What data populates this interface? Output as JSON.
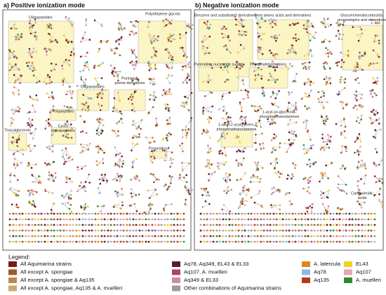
{
  "panels": [
    {
      "title": "a) Positive ionization mode",
      "groups": [
        {
          "lines": [
            "Oligopeptides"
          ]
        },
        {
          "lines": [
            "Polyethylene glycols"
          ]
        },
        {
          "lines": [
            "Oligopeptides"
          ]
        },
        {
          "lines": [
            "Purines &",
            "purine derivatives"
          ]
        },
        {
          "lines": [
            "Polypeptides"
          ]
        },
        {
          "lines": [
            "Cyclic",
            "depsipeptides"
          ]
        },
        {
          "lines": [
            "Triacylglycerols"
          ]
        },
        {
          "lines": [
            "Progestins"
          ]
        }
      ]
    },
    {
      "title": "b) Negative ionization mode",
      "groups": [
        {
          "lines": [
            "Benzene and substituted derivatives"
          ]
        },
        {
          "lines": [
            "Beta amino acids and derivatives"
          ]
        },
        {
          "lines": [
            "Gluco/mineralocorticoids,",
            "progestogins and derivatives"
          ]
        },
        {
          "lines": [
            "Pyrimidine nucleotide sugars"
          ]
        },
        {
          "lines": [
            "Phosphatidylcholines"
          ]
        },
        {
          "lines": [
            "1-acyl-sn-glycero-3-",
            "phosphoethanolamines"
          ]
        },
        {
          "lines": [
            "1-alkyl-2-acylglycero-",
            "phosphoethanolamines"
          ]
        },
        {
          "lines": [
            "Carboximidic",
            "acids"
          ]
        }
      ]
    }
  ],
  "legend": {
    "title": "Legend:",
    "items": [
      {
        "label": "All Aquimarina strains",
        "color": "#7a1a16"
      },
      {
        "label": "All except A. spongiae",
        "color": "#9c5a2a"
      },
      {
        "label": "All except A. spongiae & Aq135",
        "color": "#b8894c"
      },
      {
        "label": "All except A. spongiae, Aq135  & A. muelleri",
        "color": "#c9aa72"
      },
      {
        "label": "Aq78, Aq349, EL43 & EL33",
        "color": "#5a1c2c"
      },
      {
        "label": "Aq107, A. muelleri",
        "color": "#a8466a"
      },
      {
        "label": "Aq349 & EL33",
        "color": "#cf8aa0"
      },
      {
        "label": "Other combinations of Aquimarina strains",
        "color": "#9a9a9a"
      },
      {
        "label": "A. latercula",
        "color": "#e0861c"
      },
      {
        "label": "Aq78",
        "color": "#8cb8e2"
      },
      {
        "label": "Aq135",
        "color": "#b03a1c"
      },
      {
        "label": "EL43",
        "color": "#f0d21e"
      },
      {
        "label": "Aq107",
        "color": "#eaa2b4"
      },
      {
        "label": "A. muelleri",
        "color": "#2e8a2e"
      }
    ]
  }
}
